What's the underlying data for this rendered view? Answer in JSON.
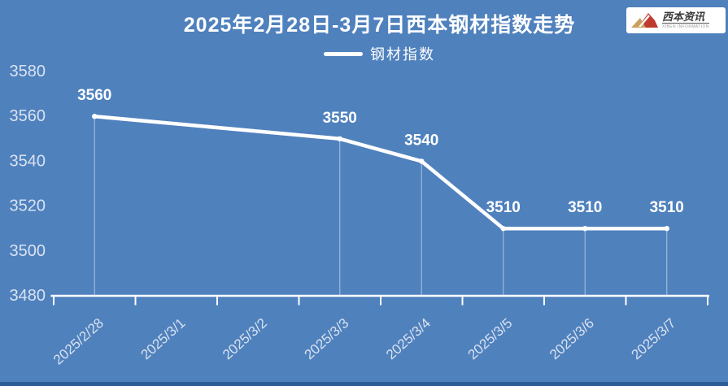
{
  "colors": {
    "background": "#4f81bd",
    "footer_bar": "#2e5c95",
    "title": "#ffffff",
    "line": "#ffffff",
    "axis": "#ffffff",
    "tick_label": "#d9e2f1",
    "data_label": "#ffffff",
    "legend_marker": "#ffffff",
    "drop_line": "rgba(255,255,255,0.45)",
    "logo_mountain_gold": "#c9a15f",
    "logo_mountain_red": "#bf3a2e"
  },
  "logo": {
    "brand": "西本资讯",
    "subtext": "XIBEN INFORMATION"
  },
  "chart_data": {
    "type": "line",
    "title": "2025年2月28日-3月7日西本钢材指数走势",
    "categories": [
      "2025/2/28",
      "2025/3/1",
      "2025/3/2",
      "2025/3/3",
      "2025/3/4",
      "2025/3/5",
      "2025/3/6",
      "2025/3/7"
    ],
    "series": [
      {
        "name": "钢材指数",
        "values": [
          3560,
          null,
          null,
          3550,
          3540,
          3510,
          3510,
          3510
        ]
      }
    ],
    "data_labels_visible": true,
    "xlabel": "",
    "ylabel": "",
    "ylim": [
      3480,
      3580
    ],
    "yticks": [
      3480,
      3500,
      3520,
      3540,
      3560,
      3580
    ],
    "grid": false,
    "legend_position": "top-center",
    "x_label_rotation_deg": -42,
    "markers": "point-dots-with-drop-lines"
  }
}
